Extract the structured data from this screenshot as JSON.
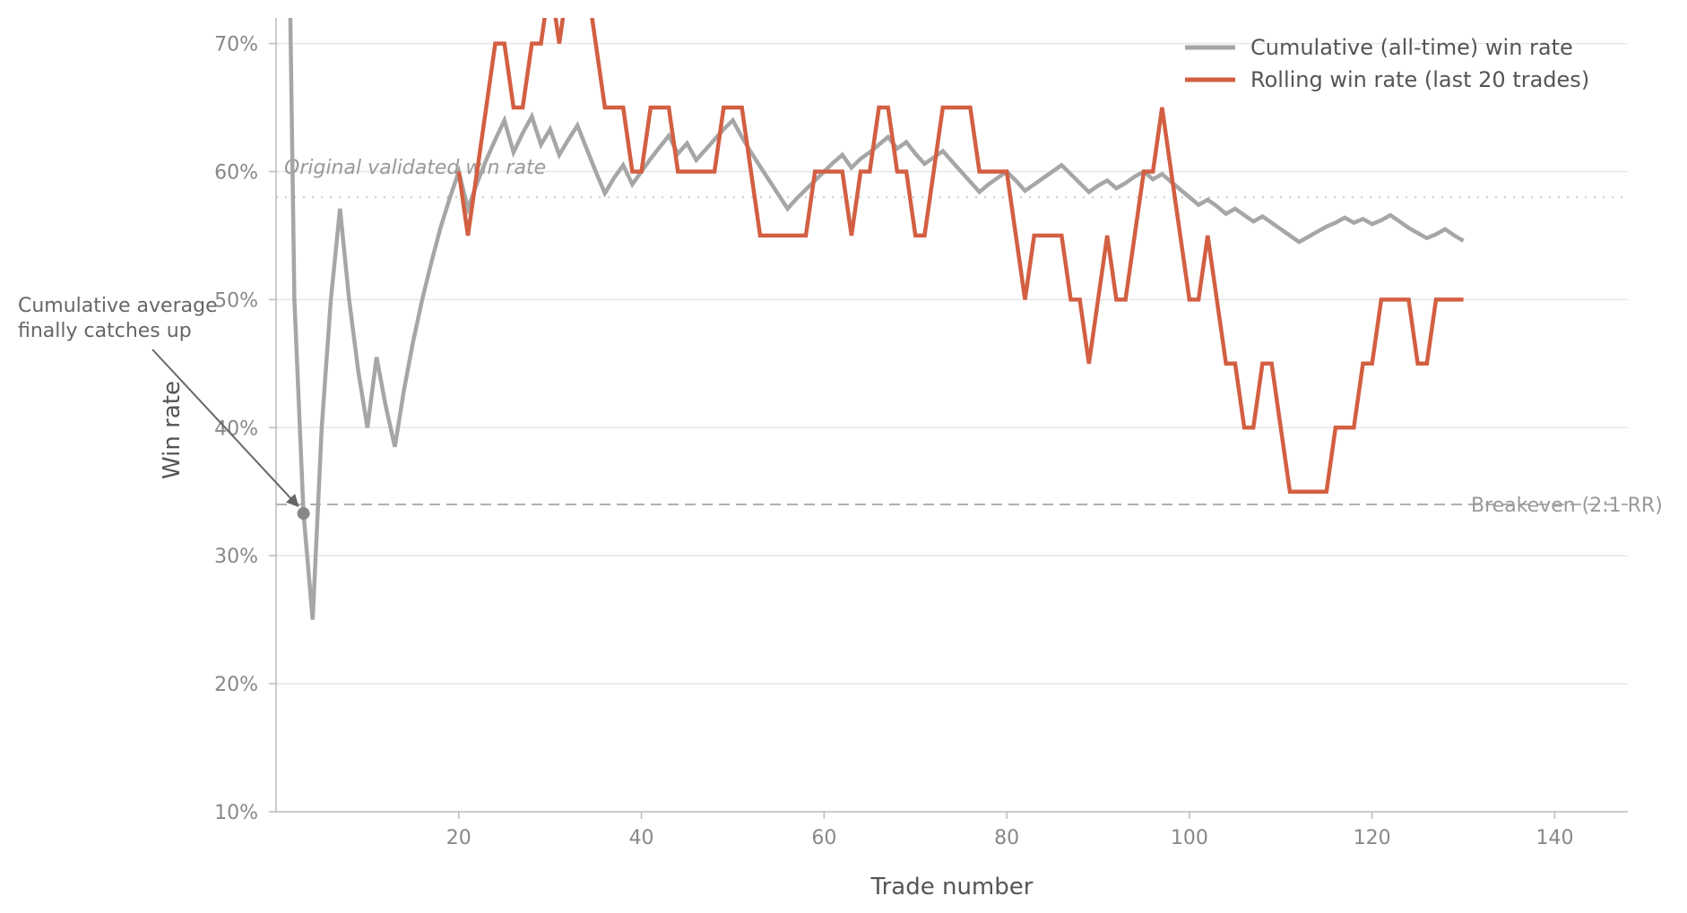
{
  "chart_data": {
    "type": "line",
    "xlabel": "Trade number",
    "ylabel": "Win rate",
    "xlim": [
      0,
      148
    ],
    "ylim": [
      10,
      72
    ],
    "xticks": [
      20,
      40,
      60,
      80,
      100,
      120,
      140
    ],
    "xtick_labels": [
      "20",
      "40",
      "60",
      "80",
      "100",
      "120",
      "140"
    ],
    "yticks": [
      10,
      20,
      30,
      40,
      50,
      60,
      70
    ],
    "ytick_labels": [
      "10%",
      "20%",
      "30%",
      "40%",
      "50%",
      "60%",
      "70%"
    ],
    "grid": "horizontal",
    "legend": "top-right",
    "series": [
      {
        "name": "Cumulative (all-time) win rate",
        "color": "#a6a6a6",
        "x": [
          1,
          2,
          3,
          4,
          5,
          6,
          7,
          8,
          9,
          10,
          11,
          12,
          13,
          14,
          15,
          16,
          17,
          18,
          19,
          20,
          21,
          22,
          23,
          24,
          25,
          26,
          27,
          28,
          29,
          30,
          31,
          32,
          33,
          34,
          35,
          36,
          37,
          38,
          39,
          40,
          41,
          42,
          43,
          44,
          45,
          46,
          47,
          48,
          49,
          50,
          51,
          52,
          53,
          54,
          55,
          56,
          57,
          58,
          59,
          60,
          61,
          62,
          63,
          64,
          65,
          66,
          67,
          68,
          69,
          70,
          71,
          72,
          73,
          74,
          75,
          76,
          77,
          78,
          79,
          80,
          81,
          82,
          83,
          84,
          85,
          86,
          87,
          88,
          89,
          90,
          91,
          92,
          93,
          94,
          95,
          96,
          97,
          98,
          99,
          100,
          101,
          102,
          103,
          104,
          105,
          106,
          107,
          108,
          109,
          110,
          111,
          112,
          113,
          114,
          115,
          116,
          117,
          118,
          119,
          120,
          121,
          122,
          123,
          124,
          125,
          126,
          127,
          128,
          129,
          130
        ],
        "values": [
          100,
          50,
          33.3,
          25,
          40,
          50,
          57.1,
          50,
          44.4,
          40,
          45.5,
          41.7,
          38.5,
          42.9,
          46.7,
          50,
          52.9,
          55.6,
          57.9,
          60,
          57.1,
          59.1,
          60.9,
          62.5,
          64,
          61.5,
          63,
          64.3,
          62.1,
          63.3,
          61.3,
          62.5,
          63.6,
          61.8,
          60,
          58.3,
          59.5,
          60.5,
          59,
          60,
          61,
          61.9,
          62.8,
          61.4,
          62.2,
          60.9,
          61.7,
          62.5,
          63.3,
          64,
          62.7,
          61.5,
          60.4,
          59.3,
          58.2,
          57.1,
          57.9,
          58.6,
          59.3,
          60,
          60.7,
          61.3,
          60.3,
          61,
          61.5,
          62.1,
          62.7,
          61.8,
          62.3,
          61.4,
          60.6,
          61.1,
          61.6,
          60.8,
          60,
          59.2,
          58.4,
          59,
          59.5,
          60,
          59.3,
          58.5,
          59,
          59.5,
          60,
          60.5,
          59.8,
          59.1,
          58.4,
          58.9,
          59.3,
          58.7,
          59.1,
          59.6,
          60,
          59.4,
          59.8,
          59.2,
          58.6,
          58,
          57.4,
          57.8,
          57.3,
          56.7,
          57.1,
          56.6,
          56.1,
          56.5,
          56,
          55.5,
          55,
          54.5,
          54.9,
          55.3,
          55.7,
          56,
          56.4,
          56,
          56.3,
          55.9,
          56.2,
          56.6,
          56.1,
          55.6,
          55.2,
          54.8,
          55.1,
          55.5,
          55,
          54.6
        ]
      },
      {
        "name": "Rolling win rate (last 20 trades)",
        "color": "#d35f42",
        "x": [
          20,
          21,
          22,
          23,
          24,
          25,
          26,
          27,
          28,
          29,
          30,
          31,
          32,
          33,
          34,
          35,
          36,
          37,
          38,
          39,
          40,
          41,
          42,
          43,
          44,
          45,
          46,
          47,
          48,
          49,
          50,
          51,
          52,
          53,
          54,
          55,
          56,
          57,
          58,
          59,
          60,
          61,
          62,
          63,
          64,
          65,
          66,
          67,
          68,
          69,
          70,
          71,
          72,
          73,
          74,
          75,
          76,
          77,
          78,
          79,
          80,
          81,
          82,
          83,
          84,
          85,
          86,
          87,
          88,
          89,
          90,
          91,
          92,
          93,
          94,
          95,
          96,
          97,
          98,
          99,
          100,
          101,
          102,
          103,
          104,
          105,
          106,
          107,
          108,
          109,
          110,
          111,
          112,
          113,
          114,
          115,
          116,
          117,
          118,
          119,
          120,
          121,
          122,
          123,
          124,
          125,
          126,
          127,
          128,
          129,
          130
        ],
        "values": [
          60,
          55,
          60,
          65,
          70,
          70,
          65,
          65,
          70,
          70,
          75,
          70,
          75,
          75,
          75,
          70,
          65,
          65,
          65,
          60,
          60,
          65,
          65,
          65,
          60,
          60,
          60,
          60,
          60,
          65,
          65,
          65,
          60,
          55,
          55,
          55,
          55,
          55,
          55,
          60,
          60,
          60,
          60,
          55,
          60,
          60,
          65,
          65,
          60,
          60,
          55,
          55,
          60,
          65,
          65,
          65,
          65,
          60,
          60,
          60,
          60,
          55,
          50,
          55,
          55,
          55,
          55,
          50,
          50,
          45,
          50,
          55,
          50,
          50,
          55,
          60,
          60,
          65,
          60,
          55,
          50,
          50,
          55,
          50,
          45,
          45,
          40,
          40,
          45,
          45,
          40,
          35,
          35,
          35,
          35,
          35,
          40,
          40,
          40,
          45,
          45,
          50,
          50,
          50,
          50,
          45,
          45,
          50,
          50,
          50,
          50
        ]
      }
    ],
    "reference_lines": [
      {
        "label": "Original validated win rate",
        "y": 58,
        "style": "dotted",
        "color": "#cccccc"
      },
      {
        "label": "Breakeven (2:1 RR)",
        "y": 34,
        "style": "dashed",
        "color": "#b0b0b0"
      }
    ],
    "annotation": {
      "lines": [
        "Cumulative average",
        "finally catches up"
      ],
      "point": {
        "x": 3,
        "y": 33.3
      },
      "color": "#666666",
      "marker_color": "#888888"
    }
  }
}
